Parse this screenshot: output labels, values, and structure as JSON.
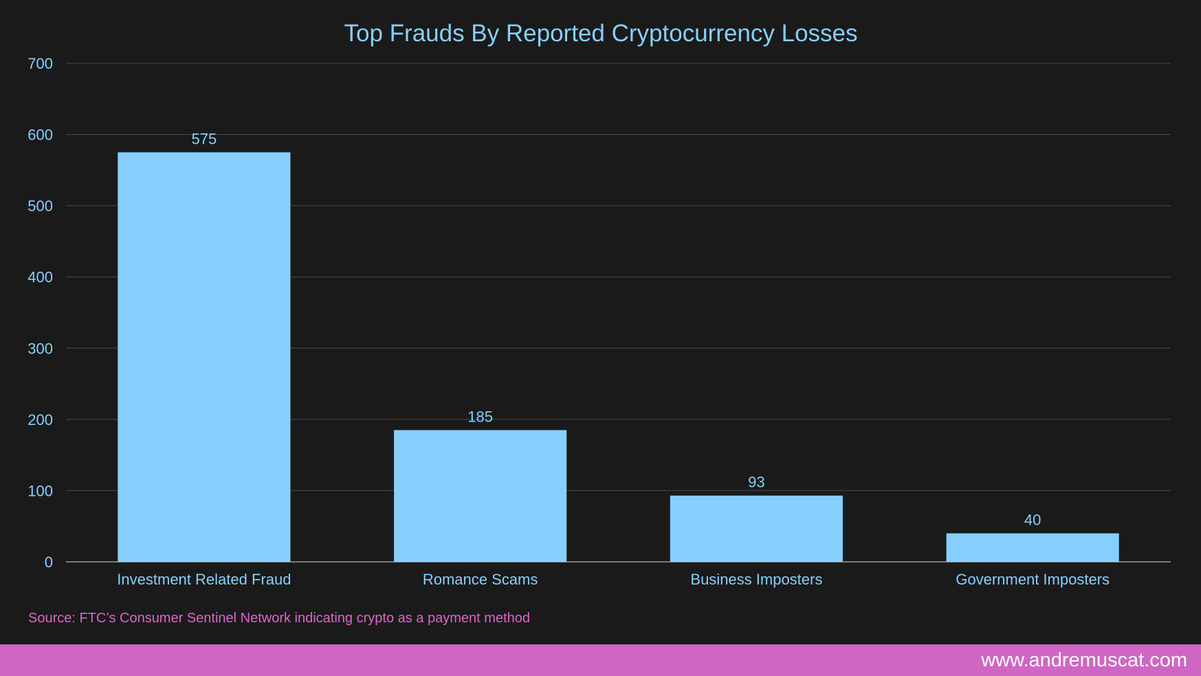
{
  "chart_data": {
    "type": "bar",
    "title": "Top Frauds By Reported Cryptocurrency Losses",
    "categories": [
      "Investment Related Fraud",
      "Romance Scams",
      "Business Imposters",
      "Government Imposters"
    ],
    "values": [
      575,
      185,
      93,
      40
    ],
    "data_labels": [
      "575",
      "185",
      "93",
      "40"
    ],
    "ylim": [
      0,
      700
    ],
    "yticks": [
      0,
      100,
      200,
      300,
      400,
      500,
      600,
      700
    ],
    "xlabel": "",
    "ylabel": "",
    "grid": true,
    "bar_color": "#86cffd",
    "text_color": "#86cffd"
  },
  "source_note": "Source: FTC’s Consumer Sentinel Network indicating crypto as a payment method",
  "footer": {
    "site": "www.andremuscat.com"
  },
  "colors": {
    "background": "#1a1a1a",
    "accent": "#d066c3",
    "source_text": "#d966c8"
  }
}
